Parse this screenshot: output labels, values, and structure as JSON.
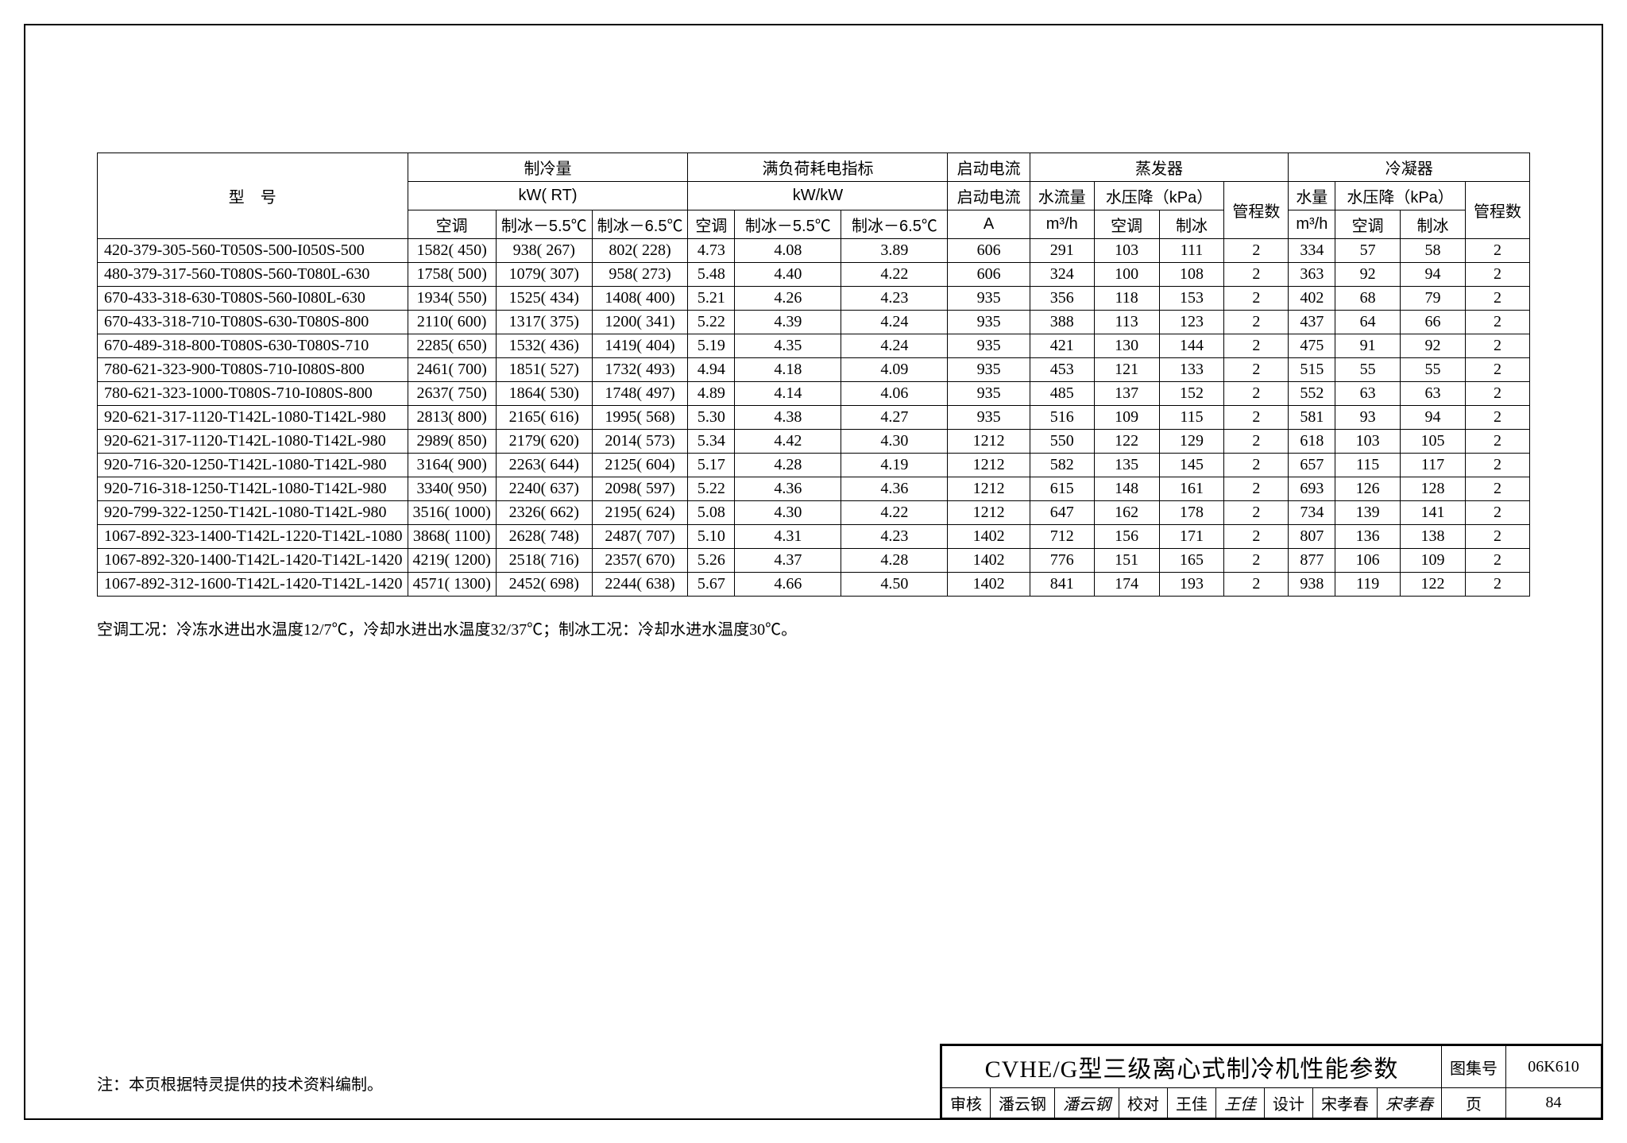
{
  "headers": {
    "model": "型　号",
    "capacity": "制冷量",
    "capacity_unit": "kW( RT)",
    "cap_ac": "空调",
    "cap_ice55": "制冰－5.5℃",
    "cap_ice65": "制冰－6.5℃",
    "full_load": "满负荷耗电指标",
    "full_load_unit": "kW/kW",
    "fl_ac": "空调",
    "fl_ice55": "制冰－5.5℃",
    "fl_ice65": "制冰－6.5℃",
    "start_current": "启动电流",
    "current_unit": "A",
    "evaporator": "蒸发器",
    "evap_flow": "水流量",
    "evap_pd": "水压降（kPa）",
    "evap_flow_unit": "m³/h",
    "pd_ac": "空调",
    "pd_ice": "制冰",
    "passes": "管程数",
    "condenser": "冷凝器",
    "cond_flow": "水量",
    "cond_pd": "水压降（kPa）",
    "cond_flow_unit": "m³/h"
  },
  "rows": [
    {
      "model": "420-379-305-560-T050S-500-I050S-500",
      "c_ac": "1582( 450)",
      "c55": "938( 267)",
      "c65": "802( 228)",
      "f_ac": "4.73",
      "f55": "4.08",
      "f65": "3.89",
      "amp": "606",
      "ef": "291",
      "epa": "103",
      "epi": "111",
      "ep": "2",
      "cf": "334",
      "cpa": "57",
      "cpi": "58",
      "cp": "2"
    },
    {
      "model": "480-379-317-560-T080S-560-T080L-630",
      "c_ac": "1758( 500)",
      "c55": "1079( 307)",
      "c65": "958( 273)",
      "f_ac": "5.48",
      "f55": "4.40",
      "f65": "4.22",
      "amp": "606",
      "ef": "324",
      "epa": "100",
      "epi": "108",
      "ep": "2",
      "cf": "363",
      "cpa": "92",
      "cpi": "94",
      "cp": "2"
    },
    {
      "model": "670-433-318-630-T080S-560-I080L-630",
      "c_ac": "1934( 550)",
      "c55": "1525( 434)",
      "c65": "1408( 400)",
      "f_ac": "5.21",
      "f55": "4.26",
      "f65": "4.23",
      "amp": "935",
      "ef": "356",
      "epa": "118",
      "epi": "153",
      "ep": "2",
      "cf": "402",
      "cpa": "68",
      "cpi": "79",
      "cp": "2"
    },
    {
      "model": "670-433-318-710-T080S-630-T080S-800",
      "c_ac": "2110( 600)",
      "c55": "1317( 375)",
      "c65": "1200( 341)",
      "f_ac": "5.22",
      "f55": "4.39",
      "f65": "4.24",
      "amp": "935",
      "ef": "388",
      "epa": "113",
      "epi": "123",
      "ep": "2",
      "cf": "437",
      "cpa": "64",
      "cpi": "66",
      "cp": "2"
    },
    {
      "model": "670-489-318-800-T080S-630-T080S-710",
      "c_ac": "2285( 650)",
      "c55": "1532( 436)",
      "c65": "1419( 404)",
      "f_ac": "5.19",
      "f55": "4.35",
      "f65": "4.24",
      "amp": "935",
      "ef": "421",
      "epa": "130",
      "epi": "144",
      "ep": "2",
      "cf": "475",
      "cpa": "91",
      "cpi": "92",
      "cp": "2"
    },
    {
      "model": "780-621-323-900-T080S-710-I080S-800",
      "c_ac": "2461( 700)",
      "c55": "1851( 527)",
      "c65": "1732( 493)",
      "f_ac": "4.94",
      "f55": "4.18",
      "f65": "4.09",
      "amp": "935",
      "ef": "453",
      "epa": "121",
      "epi": "133",
      "ep": "2",
      "cf": "515",
      "cpa": "55",
      "cpi": "55",
      "cp": "2"
    },
    {
      "model": "780-621-323-1000-T080S-710-I080S-800",
      "c_ac": "2637( 750)",
      "c55": "1864( 530)",
      "c65": "1748( 497)",
      "f_ac": "4.89",
      "f55": "4.14",
      "f65": "4.06",
      "amp": "935",
      "ef": "485",
      "epa": "137",
      "epi": "152",
      "ep": "2",
      "cf": "552",
      "cpa": "63",
      "cpi": "63",
      "cp": "2"
    },
    {
      "model": "920-621-317-1120-T142L-1080-T142L-980",
      "c_ac": "2813( 800)",
      "c55": "2165( 616)",
      "c65": "1995( 568)",
      "f_ac": "5.30",
      "f55": "4.38",
      "f65": "4.27",
      "amp": "935",
      "ef": "516",
      "epa": "109",
      "epi": "115",
      "ep": "2",
      "cf": "581",
      "cpa": "93",
      "cpi": "94",
      "cp": "2"
    },
    {
      "model": "920-621-317-1120-T142L-1080-T142L-980",
      "c_ac": "2989( 850)",
      "c55": "2179( 620)",
      "c65": "2014( 573)",
      "f_ac": "5.34",
      "f55": "4.42",
      "f65": "4.30",
      "amp": "1212",
      "ef": "550",
      "epa": "122",
      "epi": "129",
      "ep": "2",
      "cf": "618",
      "cpa": "103",
      "cpi": "105",
      "cp": "2"
    },
    {
      "model": "920-716-320-1250-T142L-1080-T142L-980",
      "c_ac": "3164( 900)",
      "c55": "2263( 644)",
      "c65": "2125( 604)",
      "f_ac": "5.17",
      "f55": "4.28",
      "f65": "4.19",
      "amp": "1212",
      "ef": "582",
      "epa": "135",
      "epi": "145",
      "ep": "2",
      "cf": "657",
      "cpa": "115",
      "cpi": "117",
      "cp": "2"
    },
    {
      "model": "920-716-318-1250-T142L-1080-T142L-980",
      "c_ac": "3340( 950)",
      "c55": "2240( 637)",
      "c65": "2098( 597)",
      "f_ac": "5.22",
      "f55": "4.36",
      "f65": "4.36",
      "amp": "1212",
      "ef": "615",
      "epa": "148",
      "epi": "161",
      "ep": "2",
      "cf": "693",
      "cpa": "126",
      "cpi": "128",
      "cp": "2"
    },
    {
      "model": "920-799-322-1250-T142L-1080-T142L-980",
      "c_ac": "3516( 1000)",
      "c55": "2326( 662)",
      "c65": "2195( 624)",
      "f_ac": "5.08",
      "f55": "4.30",
      "f65": "4.22",
      "amp": "1212",
      "ef": "647",
      "epa": "162",
      "epi": "178",
      "ep": "2",
      "cf": "734",
      "cpa": "139",
      "cpi": "141",
      "cp": "2"
    },
    {
      "model": "1067-892-323-1400-T142L-1220-T142L-1080",
      "c_ac": "3868( 1100)",
      "c55": "2628( 748)",
      "c65": "2487( 707)",
      "f_ac": "5.10",
      "f55": "4.31",
      "f65": "4.23",
      "amp": "1402",
      "ef": "712",
      "epa": "156",
      "epi": "171",
      "ep": "2",
      "cf": "807",
      "cpa": "136",
      "cpi": "138",
      "cp": "2"
    },
    {
      "model": "1067-892-320-1400-T142L-1420-T142L-1420",
      "c_ac": "4219( 1200)",
      "c55": "2518( 716)",
      "c65": "2357( 670)",
      "f_ac": "5.26",
      "f55": "4.37",
      "f65": "4.28",
      "amp": "1402",
      "ef": "776",
      "epa": "151",
      "epi": "165",
      "ep": "2",
      "cf": "877",
      "cpa": "106",
      "cpi": "109",
      "cp": "2"
    },
    {
      "model": "1067-892-312-1600-T142L-1420-T142L-1420",
      "c_ac": "4571( 1300)",
      "c55": "2452( 698)",
      "c65": "2244( 638)",
      "f_ac": "5.67",
      "f55": "4.66",
      "f65": "4.50",
      "amp": "1402",
      "ef": "841",
      "epa": "174",
      "epi": "193",
      "ep": "2",
      "cf": "938",
      "cpa": "119",
      "cpi": "122",
      "cp": "2"
    }
  ],
  "note": "空调工况：冷冻水进出水温度12/7℃，冷却水进出水温度32/37℃；制冰工况：冷却水进水温度30℃。",
  "bottom_note": "注：本页根据特灵提供的技术资料编制。",
  "title_block": {
    "title": "CVHE/G型三级离心式制冷机性能参数",
    "drawing_set_label": "图集号",
    "drawing_set": "06K610",
    "review_label": "审核",
    "reviewer": "潘云钢",
    "check_label": "校对",
    "checker": "王佳",
    "design_label": "设计",
    "designer": "宋孝春",
    "page_label": "页",
    "page": "84"
  }
}
